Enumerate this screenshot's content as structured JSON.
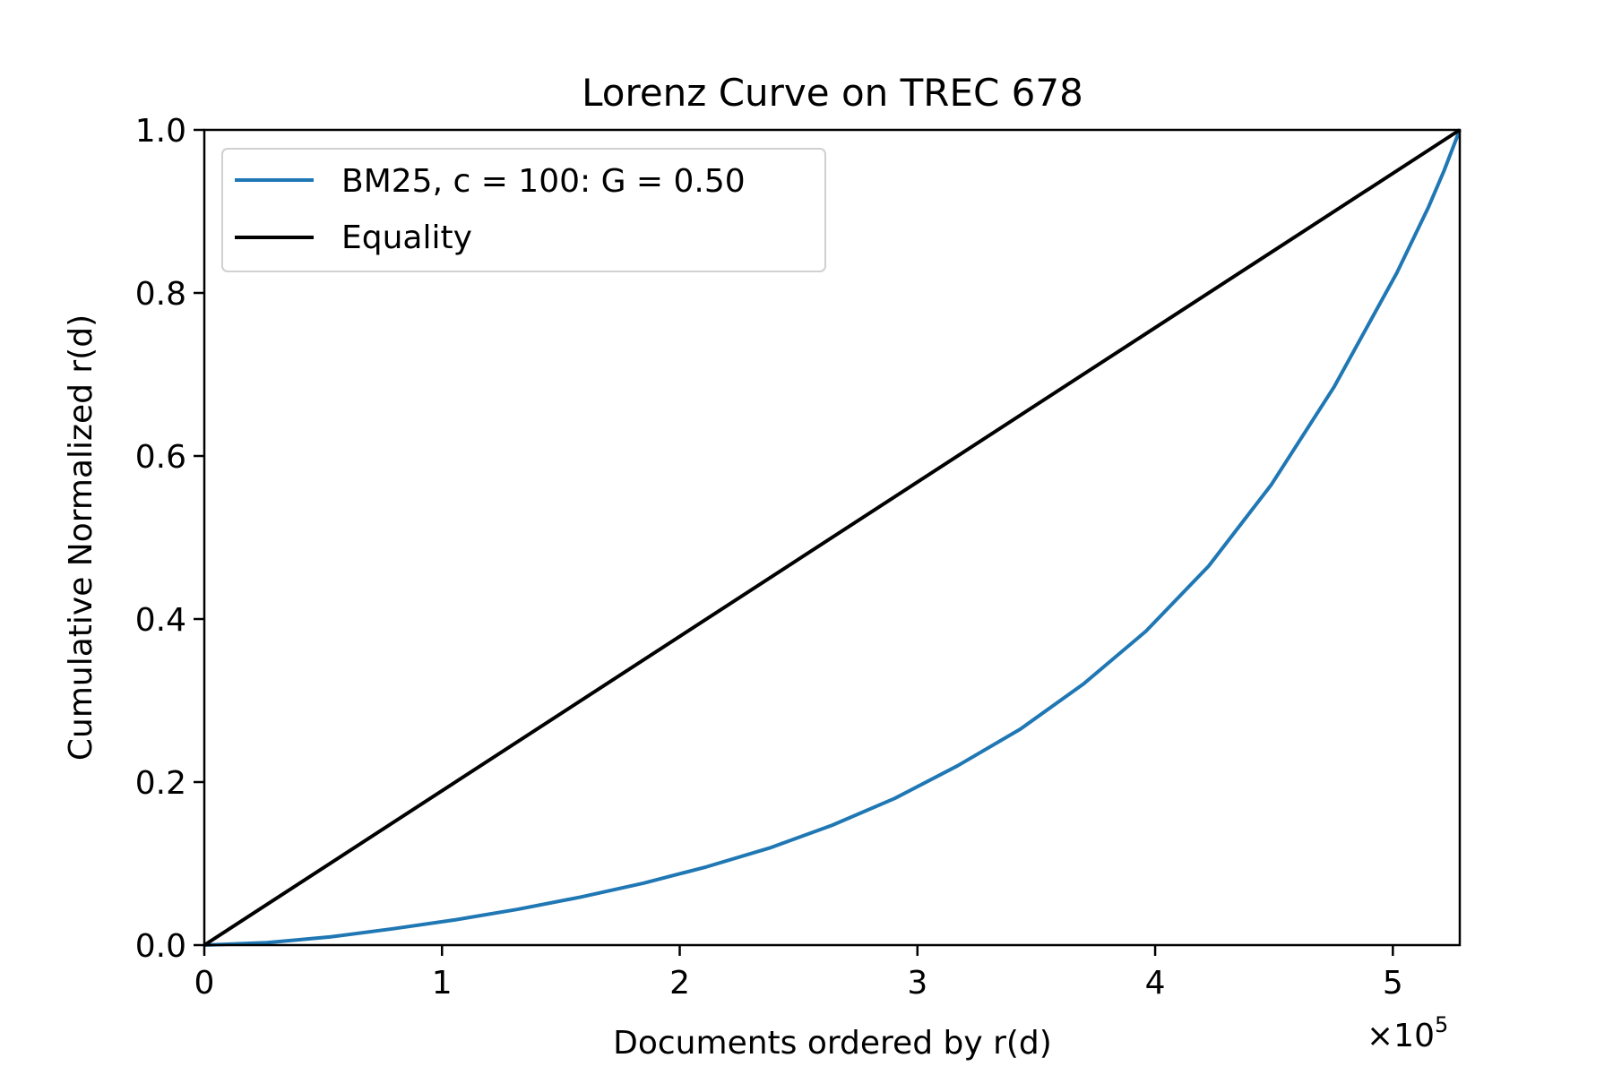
{
  "chart_data": {
    "type": "line",
    "title": "Lorenz Curve on TREC 678",
    "xlabel": "Documents ordered by r(d)",
    "ylabel": "Cumulative Normalized r(d)",
    "x_offset_text": "×10",
    "x_offset_exponent": "5",
    "x_scale": 100000,
    "xlim": [
      0,
      528155
    ],
    "ylim": [
      0,
      1.0
    ],
    "x_ticks": [
      0,
      100000,
      200000,
      300000,
      400000,
      500000
    ],
    "x_tick_labels": [
      "0",
      "1",
      "2",
      "3",
      "4",
      "5"
    ],
    "y_ticks": [
      0,
      0.2,
      0.4,
      0.6,
      0.8,
      1.0
    ],
    "y_tick_labels": [
      "0.0",
      "0.2",
      "0.4",
      "0.6",
      "0.8",
      "1.0"
    ],
    "grid": false,
    "legend_position": "top-left",
    "series": [
      {
        "name": "BM25, c = 100: G = 0.50",
        "color": "#1f77b4",
        "x": [
          0,
          26408,
          52816,
          79223,
          105631,
          132039,
          158447,
          184854,
          211262,
          237670,
          264078,
          290485,
          316893,
          343301,
          369709,
          396116,
          422524,
          448932,
          475340,
          501747,
          514951,
          521553,
          528155
        ],
        "y": [
          0,
          0.003,
          0.01,
          0.02,
          0.031,
          0.044,
          0.059,
          0.076,
          0.096,
          0.119,
          0.147,
          0.18,
          0.22,
          0.265,
          0.32,
          0.385,
          0.465,
          0.565,
          0.685,
          0.825,
          0.905,
          0.95,
          1.0
        ]
      },
      {
        "name": "Equality",
        "color": "#000000",
        "x": [
          0,
          528155
        ],
        "y": [
          0,
          1.0
        ]
      }
    ]
  }
}
